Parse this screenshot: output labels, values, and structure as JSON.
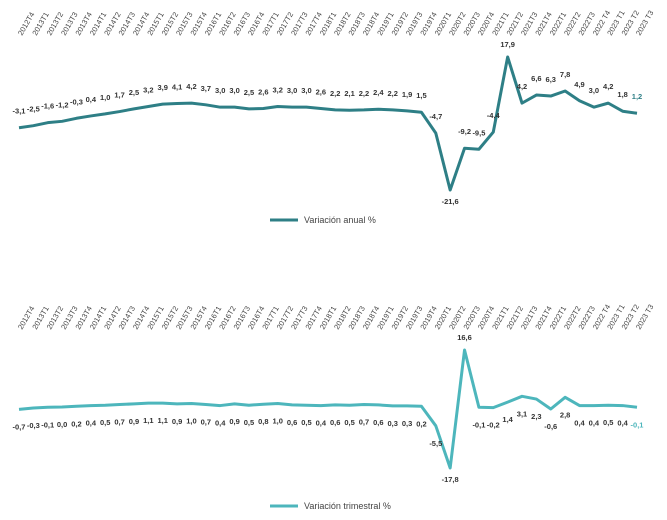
{
  "chart_data": [
    {
      "type": "line",
      "categories": [
        "2012T4",
        "2013T1",
        "2013T2",
        "2013T3",
        "2013T4",
        "2014T1",
        "2014T2",
        "2014T3",
        "2014T4",
        "2015T1",
        "2015T2",
        "2015T3",
        "2015T4",
        "2016T1",
        "2016T2",
        "2016T3",
        "2016T4",
        "2017T1",
        "2017T2",
        "2017T3",
        "2017T4",
        "2018T1",
        "2018T2",
        "2018T3",
        "2018T4",
        "2019T1",
        "2019T2",
        "2019T3",
        "2019T4",
        "2020T1",
        "2020T2",
        "2020T3",
        "2020T4",
        "2021T1",
        "2021T2",
        "2021T3",
        "2021T4",
        "2022T1",
        "2022T2",
        "2022T3",
        "2022 T4",
        "2023 T1",
        "2023 T2",
        "2023 T3"
      ],
      "series": [
        {
          "name": "Variación anual %",
          "color": "#2e7f86",
          "values": [
            -3.1,
            -2.5,
            -1.6,
            -1.2,
            -0.3,
            0.4,
            1.0,
            1.7,
            2.5,
            3.2,
            3.9,
            4.1,
            4.2,
            3.7,
            3.0,
            3.0,
            2.5,
            2.6,
            3.2,
            3.0,
            3.0,
            2.6,
            2.2,
            2.1,
            2.2,
            2.4,
            2.2,
            1.9,
            1.5,
            -4.7,
            -21.6,
            -9.2,
            -9.5,
            -4.4,
            17.9,
            4.2,
            6.6,
            6.3,
            7.8,
            4.9,
            3.0,
            4.2,
            1.8,
            1.2
          ],
          "value_labels": [
            "-3,1",
            "-2,5",
            "-1,6",
            "-1,2",
            "-0,3",
            "0,4",
            "1,0",
            "1,7",
            "2,5",
            "3,2",
            "3,9",
            "4,1",
            "4,2",
            "3,7",
            "3,0",
            "3,0",
            "2,5",
            "2,6",
            "3,2",
            "3,0",
            "3,0",
            "2,6",
            "2,2",
            "2,1",
            "2,2",
            "2,4",
            "2,2",
            "1,9",
            "1,5",
            "-4,7",
            "-21,6",
            "-9,2",
            "-9,5",
            "-4,4",
            "17,9",
            "4,2",
            "6,6",
            "6,3",
            "7,8",
            "4,9",
            "3,0",
            "4,2",
            "1,8",
            "1,2"
          ]
        }
      ],
      "legend": "bottom"
    },
    {
      "type": "line",
      "categories": [
        "2012T4",
        "2013T1",
        "2013T2",
        "2013T3",
        "2013T4",
        "2014T1",
        "2014T2",
        "2014T3",
        "2014T4",
        "2015T1",
        "2015T2",
        "2015T3",
        "2015T4",
        "2016T1",
        "2016T2",
        "2016T3",
        "2016T4",
        "2017T1",
        "2017T2",
        "2017T3",
        "2017T4",
        "2018T1",
        "2018T2",
        "2018T3",
        "2018T4",
        "2019T1",
        "2019T2",
        "2019T3",
        "2019T4",
        "2020T1",
        "2020T2",
        "2020T3",
        "2020T4",
        "2021T1",
        "2021T2",
        "2021T3",
        "2021T4",
        "2022T1",
        "2022T2",
        "2022T3",
        "2022 T4",
        "2023 T1",
        "2023 T2",
        "2023 T3"
      ],
      "series": [
        {
          "name": "Variación trimestral %",
          "color": "#4db6bc",
          "values": [
            -0.7,
            -0.3,
            -0.1,
            0.0,
            0.2,
            0.4,
            0.5,
            0.7,
            0.9,
            1.1,
            1.1,
            0.9,
            1.0,
            0.7,
            0.4,
            0.9,
            0.5,
            0.8,
            1.0,
            0.6,
            0.5,
            0.4,
            0.6,
            0.5,
            0.7,
            0.6,
            0.3,
            0.3,
            0.2,
            -5.5,
            -17.8,
            16.6,
            -0.1,
            -0.2,
            1.4,
            3.1,
            2.3,
            -0.6,
            2.8,
            0.4,
            0.4,
            0.5,
            0.4,
            -0.1
          ],
          "value_labels": [
            "-0,7",
            "-0,3",
            "-0,1",
            "0,0",
            "0,2",
            "0,4",
            "0,5",
            "0,7",
            "0,9",
            "1,1",
            "1,1",
            "0,9",
            "1,0",
            "0,7",
            "0,4",
            "0,9",
            "0,5",
            "0,8",
            "1,0",
            "0,6",
            "0,5",
            "0,4",
            "0,6",
            "0,5",
            "0,7",
            "0,6",
            "0,3",
            "0,3",
            "0,2",
            "-5,5",
            "-17,8",
            "16,6",
            "-0,1",
            "-0,2",
            "1,4",
            "3,1",
            "2,3",
            "-0,6",
            "2,8",
            "0,4",
            "0,4",
            "0,5",
            "0,4",
            "-0,1"
          ]
        }
      ],
      "legend": "bottom"
    }
  ]
}
